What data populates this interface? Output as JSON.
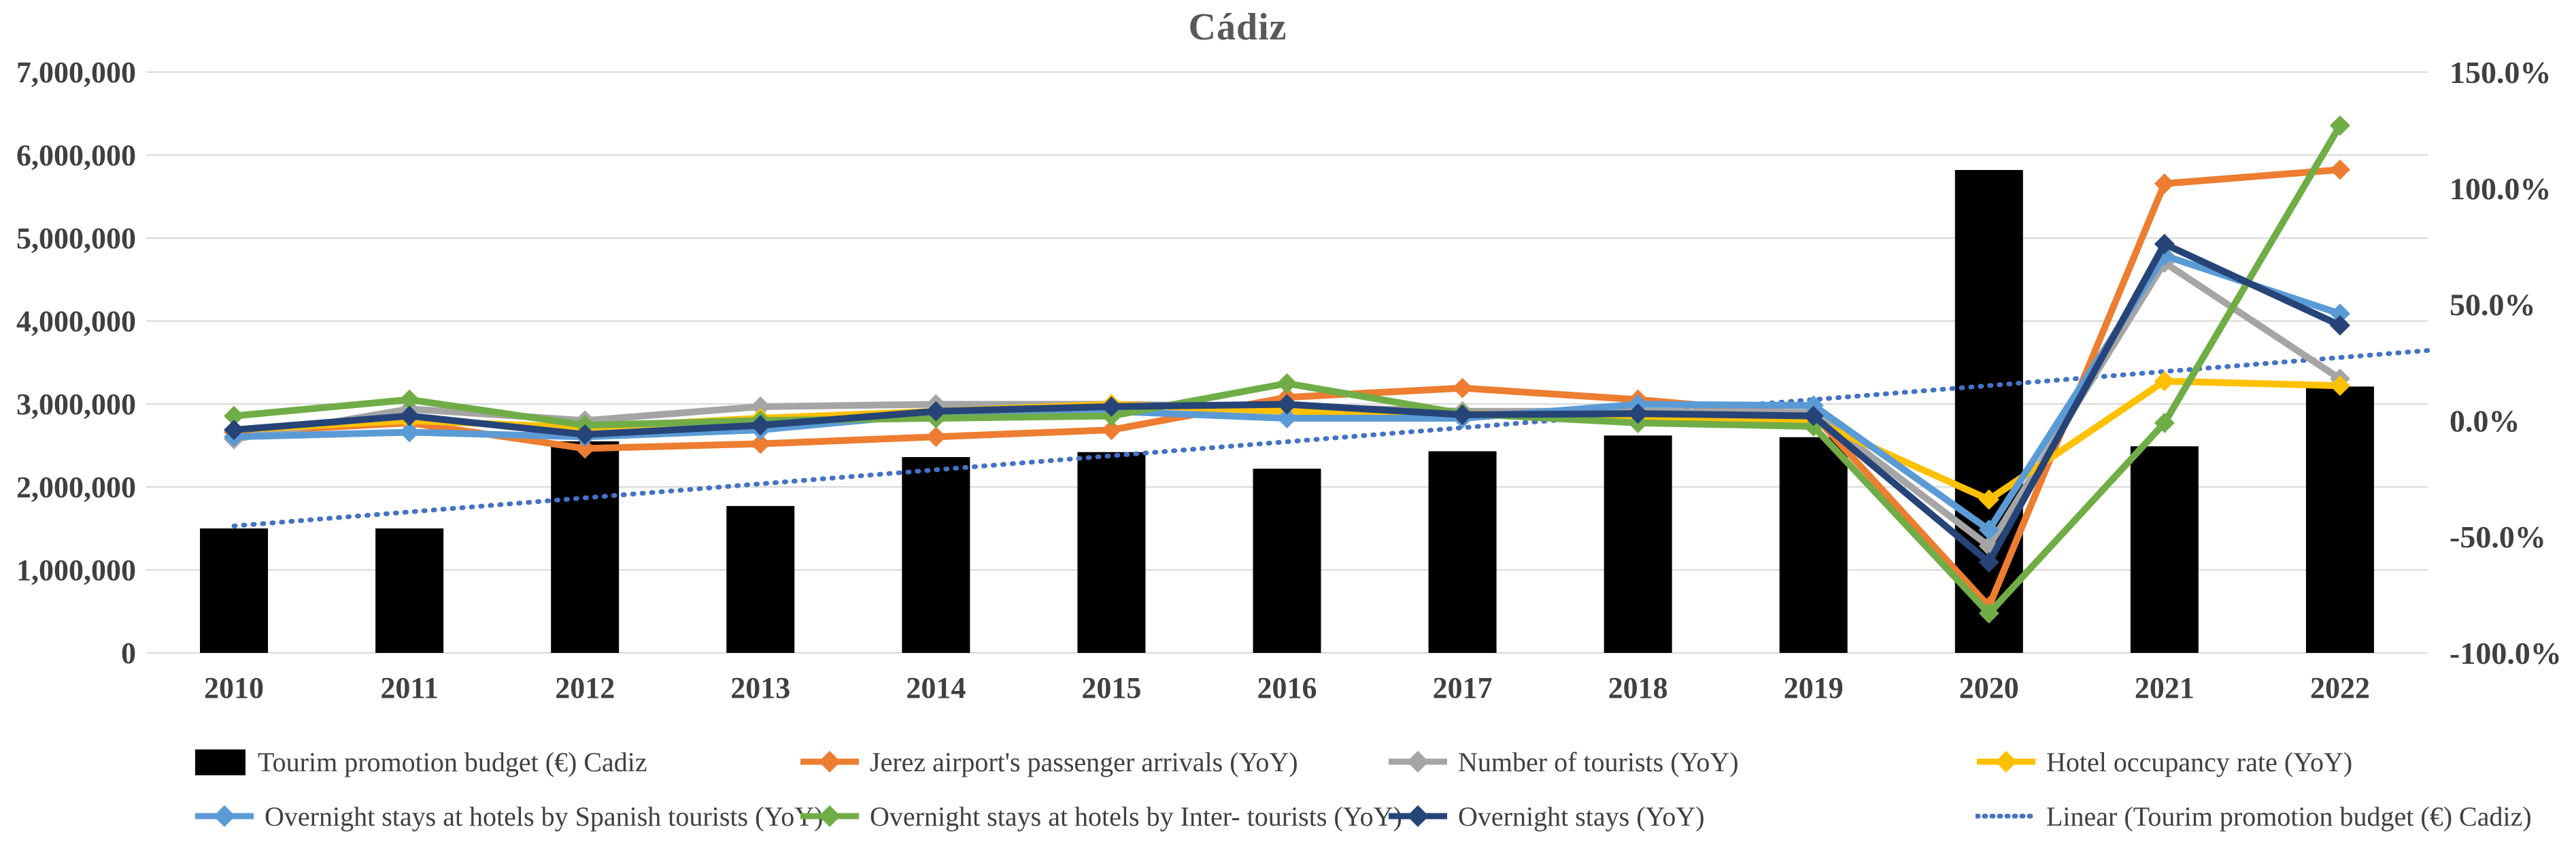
{
  "title": "Cádiz",
  "chart_data": {
    "type": "combo-bar-line",
    "title": "Cádiz",
    "categories": [
      "2010",
      "2011",
      "2012",
      "2013",
      "2014",
      "2015",
      "2016",
      "2017",
      "2018",
      "2019",
      "2020",
      "2021",
      "2022"
    ],
    "bar_series": {
      "name": "Tourim promotion budget (€) Cadiz",
      "color": "#000000",
      "axis": "left",
      "values": [
        1500000,
        1500000,
        2550000,
        1770000,
        2360000,
        2420000,
        2220000,
        2430000,
        2620000,
        2600000,
        5820000,
        2490000,
        3210000
      ]
    },
    "line_series": [
      {
        "name": "Jerez airport's passenger arrivals (YoY)",
        "color": "#ED7D31",
        "axis": "right",
        "values_pct": [
          -5,
          -1,
          -12,
          -10,
          -7,
          -4,
          10,
          14,
          9,
          2.5,
          -80,
          102,
          108
        ]
      },
      {
        "name": "Number of tourists (YoY)",
        "color": "#A5A5A5",
        "axis": "right",
        "values_pct": [
          -8,
          5,
          0,
          6,
          7,
          7,
          6,
          4,
          4,
          3.5,
          -54,
          68,
          18
        ]
      },
      {
        "name": "Hotel occupancy rate (YoY)",
        "color": "#FFC000",
        "axis": "right",
        "values_pct": [
          -4,
          0,
          -3,
          1,
          4,
          7,
          4,
          3,
          1,
          0,
          -34,
          17,
          15
        ]
      },
      {
        "name": "Overnight stays at hotels by Spanish tourists (YoY)",
        "color": "#5B9BD5",
        "axis": "right",
        "values_pct": [
          -7,
          -5,
          -7,
          -4,
          3,
          4,
          1,
          1,
          7,
          6.5,
          -47,
          71,
          46
        ]
      },
      {
        "name": "Overnight stays at hotels by Inter- tourists (YoY)",
        "color": "#70AD47",
        "axis": "right",
        "values_pct": [
          2,
          9,
          -2,
          0,
          1,
          2,
          16,
          3,
          -1,
          -2.5,
          -83,
          -1,
          127
        ]
      },
      {
        "name": "Overnight stays (YoY)",
        "color": "#264478",
        "axis": "right",
        "values_pct": [
          -4,
          2,
          -6,
          -2,
          4,
          6,
          7,
          2.5,
          3,
          2,
          -61,
          76,
          41
        ]
      }
    ],
    "trendline": {
      "name": "Linear (Tourim promotion budget (€) Cadiz)",
      "color": "#4472C4",
      "style": "dotted",
      "value_at_2010": 1530000,
      "value_at_2022": 3560000
    },
    "left_axis": {
      "min": 0,
      "max": 7000000,
      "step": 1000000,
      "tick_labels_top_to_bottom": [
        "7,000,000",
        "6,000,000",
        "5,000,000",
        "4,000,000",
        "3,000,000",
        "2,000,000",
        "1,000,000",
        "0"
      ]
    },
    "right_axis": {
      "min": -100,
      "max": 150,
      "step": 50,
      "tick_labels_top_to_bottom": [
        "150.0%",
        "100.0%",
        "50.0%",
        "0.0%",
        "-50.0%",
        "-100.0%"
      ]
    },
    "grid": "horizontal-only",
    "gridline_color": "#D9D9D9",
    "legend_position": "bottom-two-rows"
  },
  "legend": {
    "row1": [
      {
        "label": "Tourim promotion budget (€) Cadiz",
        "color": "#000000",
        "swatch": "bar"
      },
      {
        "label": "Jerez airport's passenger arrivals (YoY)",
        "color": "#ED7D31",
        "swatch": "line-marker"
      },
      {
        "label": "Number of tourists (YoY)",
        "color": "#A5A5A5",
        "swatch": "line-marker"
      },
      {
        "label": "Hotel occupancy rate (YoY)",
        "color": "#FFC000",
        "swatch": "line-marker"
      }
    ],
    "row2": [
      {
        "label": "Overnight stays at hotels by Spanish tourists (YoY)",
        "color": "#5B9BD5",
        "swatch": "line-marker"
      },
      {
        "label": "Overnight stays at hotels by Inter- tourists (YoY)",
        "color": "#70AD47",
        "swatch": "line-marker"
      },
      {
        "label": "Overnight stays (YoY)",
        "color": "#264478",
        "swatch": "line-marker"
      },
      {
        "label": "Linear (Tourim promotion budget (€) Cadiz)",
        "color": "#4472C4",
        "swatch": "dotted-line"
      }
    ]
  }
}
